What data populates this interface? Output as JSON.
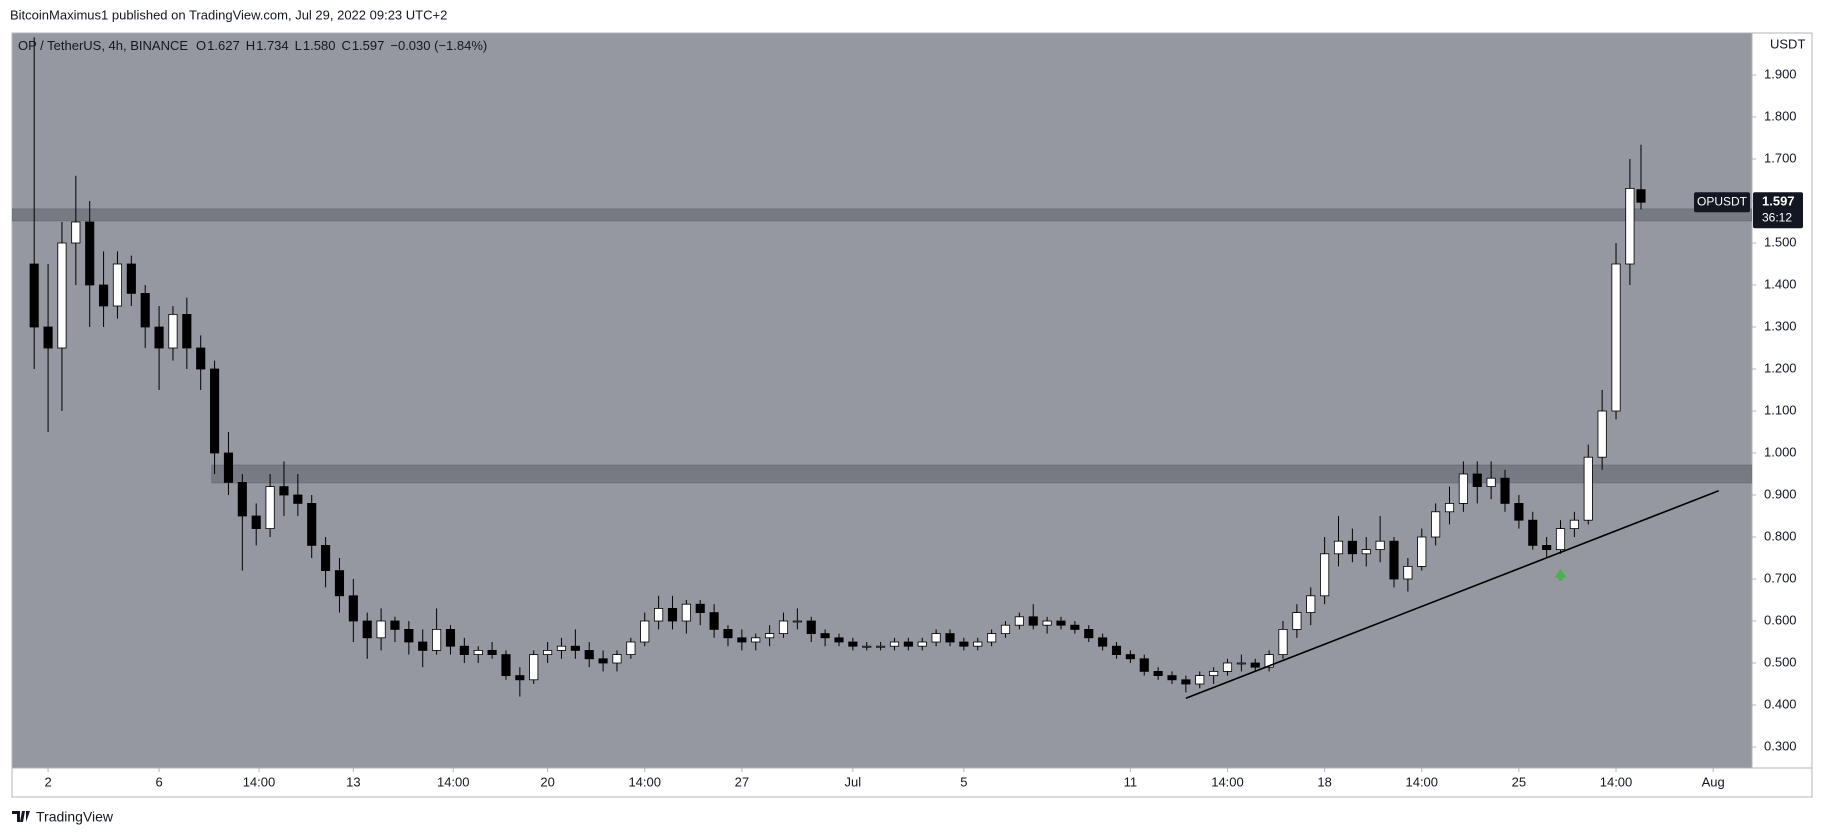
{
  "attribution": "BitcoinMaximus1 published on TradingView.com, Jul 29, 2022 09:23 UTC+2",
  "footer": "TradingView",
  "chart_data": {
    "type": "candlestick",
    "symbol": "OP / TetherUS, 4h, BINANCE",
    "ohlc": [
      {
        "key": "O",
        "value": "1.627"
      },
      {
        "key": "H",
        "value": "1.734"
      },
      {
        "key": "L",
        "value": "1.580"
      },
      {
        "key": "C",
        "value": "1.597"
      }
    ],
    "change": "−0.030 (−1.84%)",
    "y_axis_label": "USDT",
    "x": [
      1.5,
      2,
      2.5,
      3,
      3.5,
      4,
      4.5,
      5,
      5.5,
      6,
      6.5,
      7,
      7.5,
      8,
      8.5,
      9,
      9.5,
      10,
      10.5,
      11,
      11.5,
      12,
      12.5,
      13,
      13.5,
      14,
      14.5,
      15,
      15.5,
      16,
      16.5,
      17,
      17.5,
      18,
      18.5,
      19,
      19.5,
      20,
      20.5,
      21,
      21.5,
      22,
      22.5,
      23,
      23.5,
      24,
      24.5,
      25,
      25.5,
      26,
      26.5,
      27,
      27.5,
      28,
      28.5,
      29,
      29.5,
      30,
      30.5,
      31,
      31.5,
      32,
      32.5,
      33,
      33.5,
      34,
      34.5,
      35,
      35.5,
      36,
      36.5,
      37,
      37.5,
      38,
      38.5,
      39,
      39.5,
      40,
      40.5,
      41,
      41.5,
      42,
      42.5,
      43,
      43.5,
      44,
      44.5,
      45,
      45.5,
      46,
      46.5,
      47,
      47.5,
      48,
      48.5,
      49,
      49.5,
      50,
      50.5,
      51,
      51.5,
      52,
      52.5,
      53,
      53.5,
      54,
      54.5,
      55,
      55.5,
      56,
      56.5,
      57,
      57.5,
      58,
      58.5,
      59,
      59.4
    ],
    "open": [
      1.45,
      1.3,
      1.25,
      1.5,
      1.55,
      1.4,
      1.35,
      1.45,
      1.38,
      1.3,
      1.25,
      1.33,
      1.25,
      1.2,
      1.0,
      0.93,
      0.85,
      0.82,
      0.92,
      0.9,
      0.88,
      0.78,
      0.72,
      0.66,
      0.6,
      0.56,
      0.6,
      0.58,
      0.55,
      0.53,
      0.58,
      0.54,
      0.52,
      0.53,
      0.52,
      0.47,
      0.46,
      0.52,
      0.53,
      0.54,
      0.53,
      0.51,
      0.5,
      0.52,
      0.55,
      0.6,
      0.63,
      0.6,
      0.64,
      0.62,
      0.58,
      0.56,
      0.55,
      0.56,
      0.57,
      0.6,
      0.6,
      0.57,
      0.56,
      0.55,
      0.54,
      0.54,
      0.54,
      0.55,
      0.54,
      0.55,
      0.57,
      0.55,
      0.54,
      0.55,
      0.57,
      0.59,
      0.61,
      0.59,
      0.6,
      0.59,
      0.58,
      0.56,
      0.54,
      0.52,
      0.51,
      0.48,
      0.47,
      0.46,
      0.45,
      0.47,
      0.48,
      0.5,
      0.5,
      0.49,
      0.52,
      0.58,
      0.62,
      0.66,
      0.76,
      0.79,
      0.76,
      0.77,
      0.79,
      0.7,
      0.73,
      0.8,
      0.86,
      0.88,
      0.95,
      0.92,
      0.94,
      0.88,
      0.84,
      0.78,
      0.77,
      0.82,
      0.84,
      0.99,
      1.1,
      1.45,
      1.627
    ],
    "high": [
      1.99,
      1.45,
      1.55,
      1.66,
      1.6,
      1.48,
      1.48,
      1.47,
      1.4,
      1.35,
      1.35,
      1.37,
      1.28,
      1.22,
      1.05,
      0.95,
      0.88,
      0.95,
      0.98,
      0.95,
      0.9,
      0.8,
      0.75,
      0.7,
      0.62,
      0.63,
      0.61,
      0.6,
      0.58,
      0.63,
      0.59,
      0.56,
      0.54,
      0.55,
      0.53,
      0.49,
      0.53,
      0.55,
      0.56,
      0.58,
      0.55,
      0.53,
      0.53,
      0.56,
      0.62,
      0.66,
      0.66,
      0.65,
      0.65,
      0.64,
      0.59,
      0.58,
      0.57,
      0.59,
      0.62,
      0.63,
      0.61,
      0.58,
      0.57,
      0.56,
      0.55,
      0.55,
      0.56,
      0.56,
      0.56,
      0.58,
      0.58,
      0.56,
      0.56,
      0.58,
      0.6,
      0.62,
      0.64,
      0.61,
      0.61,
      0.6,
      0.59,
      0.57,
      0.55,
      0.53,
      0.52,
      0.49,
      0.48,
      0.47,
      0.48,
      0.49,
      0.51,
      0.52,
      0.51,
      0.53,
      0.6,
      0.64,
      0.68,
      0.8,
      0.85,
      0.82,
      0.8,
      0.85,
      0.8,
      0.75,
      0.82,
      0.88,
      0.92,
      0.98,
      0.98,
      0.98,
      0.96,
      0.9,
      0.86,
      0.8,
      0.84,
      0.86,
      1.02,
      1.15,
      1.5,
      1.7,
      1.734
    ],
    "low": [
      1.2,
      1.05,
      1.1,
      1.4,
      1.3,
      1.3,
      1.32,
      1.35,
      1.25,
      1.15,
      1.22,
      1.2,
      1.15,
      0.95,
      0.9,
      0.72,
      0.78,
      0.8,
      0.85,
      0.85,
      0.75,
      0.68,
      0.62,
      0.55,
      0.51,
      0.53,
      0.55,
      0.52,
      0.49,
      0.52,
      0.52,
      0.5,
      0.5,
      0.51,
      0.46,
      0.42,
      0.45,
      0.5,
      0.51,
      0.51,
      0.49,
      0.48,
      0.48,
      0.51,
      0.54,
      0.58,
      0.58,
      0.57,
      0.59,
      0.56,
      0.54,
      0.53,
      0.53,
      0.54,
      0.56,
      0.58,
      0.55,
      0.54,
      0.54,
      0.53,
      0.53,
      0.53,
      0.53,
      0.53,
      0.53,
      0.54,
      0.54,
      0.53,
      0.53,
      0.54,
      0.56,
      0.58,
      0.58,
      0.57,
      0.58,
      0.57,
      0.55,
      0.53,
      0.51,
      0.5,
      0.47,
      0.46,
      0.45,
      0.43,
      0.44,
      0.45,
      0.47,
      0.48,
      0.48,
      0.48,
      0.51,
      0.56,
      0.59,
      0.64,
      0.73,
      0.74,
      0.73,
      0.74,
      0.68,
      0.67,
      0.72,
      0.78,
      0.83,
      0.86,
      0.88,
      0.89,
      0.86,
      0.82,
      0.77,
      0.75,
      0.76,
      0.8,
      0.83,
      0.96,
      1.08,
      1.4,
      1.58
    ],
    "close": [
      1.3,
      1.25,
      1.5,
      1.55,
      1.4,
      1.35,
      1.45,
      1.38,
      1.3,
      1.25,
      1.33,
      1.25,
      1.2,
      1.0,
      0.93,
      0.85,
      0.82,
      0.92,
      0.9,
      0.88,
      0.78,
      0.72,
      0.66,
      0.6,
      0.56,
      0.6,
      0.58,
      0.55,
      0.53,
      0.58,
      0.54,
      0.52,
      0.53,
      0.52,
      0.47,
      0.46,
      0.52,
      0.53,
      0.54,
      0.53,
      0.51,
      0.5,
      0.52,
      0.55,
      0.6,
      0.63,
      0.6,
      0.64,
      0.62,
      0.58,
      0.56,
      0.55,
      0.56,
      0.57,
      0.6,
      0.6,
      0.57,
      0.56,
      0.55,
      0.54,
      0.54,
      0.54,
      0.55,
      0.54,
      0.55,
      0.57,
      0.55,
      0.54,
      0.55,
      0.57,
      0.59,
      0.61,
      0.59,
      0.6,
      0.59,
      0.58,
      0.56,
      0.54,
      0.52,
      0.51,
      0.48,
      0.47,
      0.46,
      0.45,
      0.47,
      0.48,
      0.5,
      0.5,
      0.49,
      0.52,
      0.58,
      0.62,
      0.66,
      0.76,
      0.79,
      0.76,
      0.77,
      0.79,
      0.7,
      0.73,
      0.8,
      0.86,
      0.88,
      0.95,
      0.92,
      0.94,
      0.88,
      0.84,
      0.78,
      0.77,
      0.82,
      0.84,
      0.99,
      1.1,
      1.45,
      1.63,
      1.597
    ],
    "up_color": "#ffffff",
    "down_color": "#000000",
    "wick_color": "#000000",
    "background": "#9598a0",
    "xlim": [
      0.7,
      63.4
    ],
    "ylim": [
      0.25,
      2.0
    ],
    "yticks": [
      {
        "value": 0.3,
        "label": "0.300"
      },
      {
        "value": 0.4,
        "label": "0.400"
      },
      {
        "value": 0.5,
        "label": "0.500"
      },
      {
        "value": 0.6,
        "label": "0.600"
      },
      {
        "value": 0.7,
        "label": "0.700"
      },
      {
        "value": 0.8,
        "label": "0.800"
      },
      {
        "value": 0.9,
        "label": "0.900"
      },
      {
        "value": 1.0,
        "label": "1.000"
      },
      {
        "value": 1.1,
        "label": "1.100"
      },
      {
        "value": 1.2,
        "label": "1.200"
      },
      {
        "value": 1.3,
        "label": "1.300"
      },
      {
        "value": 1.4,
        "label": "1.400"
      },
      {
        "value": 1.5,
        "label": "1.500"
      },
      {
        "value": 1.6,
        "label": "1.600"
      },
      {
        "value": 1.7,
        "label": "1.700"
      },
      {
        "value": 1.8,
        "label": "1.800"
      },
      {
        "value": 1.9,
        "label": "1.900"
      }
    ],
    "xticks": [
      2,
      6,
      {
        "value": 9.6,
        "label": "14:00"
      },
      13,
      {
        "value": 16.6,
        "label": "14:00"
      },
      20,
      {
        "value": 23.5,
        "label": "14:00"
      },
      27,
      {
        "value": 31,
        "label": "Jul"
      },
      {
        "value": 35,
        "label": "5"
      },
      {
        "value": 41,
        "label": "11"
      },
      {
        "value": 44.5,
        "label": "14:00"
      },
      {
        "value": 48,
        "label": "18"
      },
      {
        "value": 51.5,
        "label": "14:00"
      },
      {
        "value": 55,
        "label": "25"
      },
      {
        "value": 58.5,
        "label": "14:00"
      },
      {
        "value": 62,
        "label": "Aug"
      }
    ],
    "grid": false,
    "zones": [
      {
        "ylim": [
          1.553,
          1.581
        ],
        "x_start": 0.7
      },
      {
        "ylim": [
          0.929,
          0.971
        ],
        "x_start": 7.9
      }
    ],
    "trendline": {
      "x": [
        43.0,
        62.2
      ],
      "y": [
        0.416,
        0.91
      ]
    },
    "marker": {
      "x": 56.5,
      "y": 0.71,
      "color": "#4caf50"
    },
    "price_tag": {
      "symbol": "OPUSDT",
      "value": 1.597,
      "countdown": "36:12"
    }
  }
}
